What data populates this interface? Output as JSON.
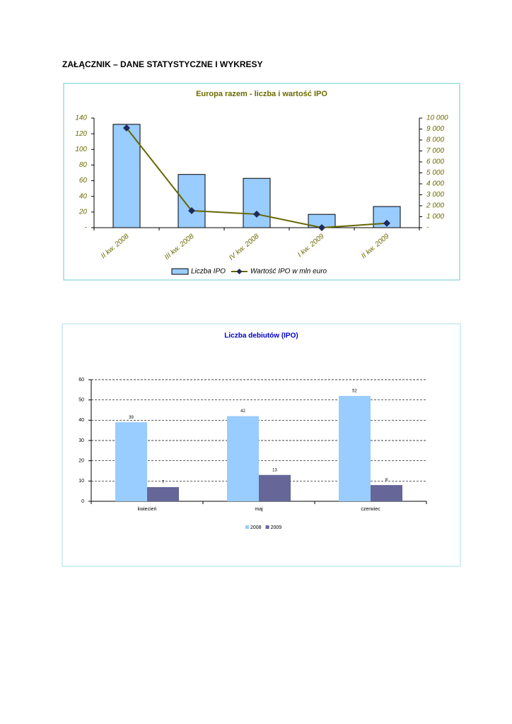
{
  "heading": "ZAŁĄCZNIK – DANE STATYSTYCZNE I WYKRESY",
  "chart_data": [
    {
      "type": "bar",
      "title": "Europa razem - liczba i wartość IPO",
      "categories": [
        "II kw. 2008",
        "III kw. 2008",
        "IV kw. 2008",
        "I kw. 2009",
        "II kw. 2009"
      ],
      "series": [
        {
          "name": "Liczba IPO",
          "type": "bar",
          "color": "#99ccff",
          "values": [
            132,
            68,
            63,
            17,
            27
          ]
        },
        {
          "name": "Wartość IPO w mln euro",
          "type": "line",
          "axis": "y2",
          "color": "#666600",
          "marker_color": "#1f2a5c",
          "values": [
            9100,
            1550,
            1230,
            0,
            400
          ]
        }
      ],
      "ylim": [
        0,
        140
      ],
      "yticks": [
        {
          "value": 0,
          "label": "-"
        },
        20,
        40,
        60,
        80,
        100,
        120,
        140
      ],
      "y2lim": [
        0,
        10000
      ],
      "y2ticks": [
        {
          "value": 0,
          "label": "-"
        },
        {
          "value": 1000,
          "label": "1 000"
        },
        {
          "value": 2000,
          "label": "2 000"
        },
        {
          "value": 3000,
          "label": "3 000"
        },
        {
          "value": 4000,
          "label": "4 000"
        },
        {
          "value": 5000,
          "label": "5 000"
        },
        {
          "value": 6000,
          "label": "6 000"
        },
        {
          "value": 7000,
          "label": "7 000"
        },
        {
          "value": 8000,
          "label": "8 000"
        },
        {
          "value": 9000,
          "label": "9 000"
        },
        {
          "value": 10000,
          "label": "10 000"
        }
      ],
      "grid": false,
      "data_labels": false,
      "legend": "bottom",
      "text_color": "#6b6b00",
      "frame_color": "#66cccc"
    },
    {
      "type": "bar",
      "title": "Liczba debiutów (IPO)",
      "categories": [
        "kwiecień",
        "maj",
        "czerwiec"
      ],
      "series": [
        {
          "name": "2008",
          "type": "bar",
          "color": "#99ccff",
          "values": [
            39,
            42,
            52
          ]
        },
        {
          "name": "2009",
          "type": "bar",
          "color": "#666699",
          "values": [
            7,
            13,
            8
          ]
        }
      ],
      "ylim": [
        0,
        60
      ],
      "yticks": [
        0,
        10,
        20,
        30,
        40,
        50,
        60
      ],
      "grid": true,
      "data_labels": true,
      "legend": "bottom",
      "text_color": "#000000",
      "title_color": "#0000cc",
      "frame_color": "#aadfee"
    }
  ]
}
